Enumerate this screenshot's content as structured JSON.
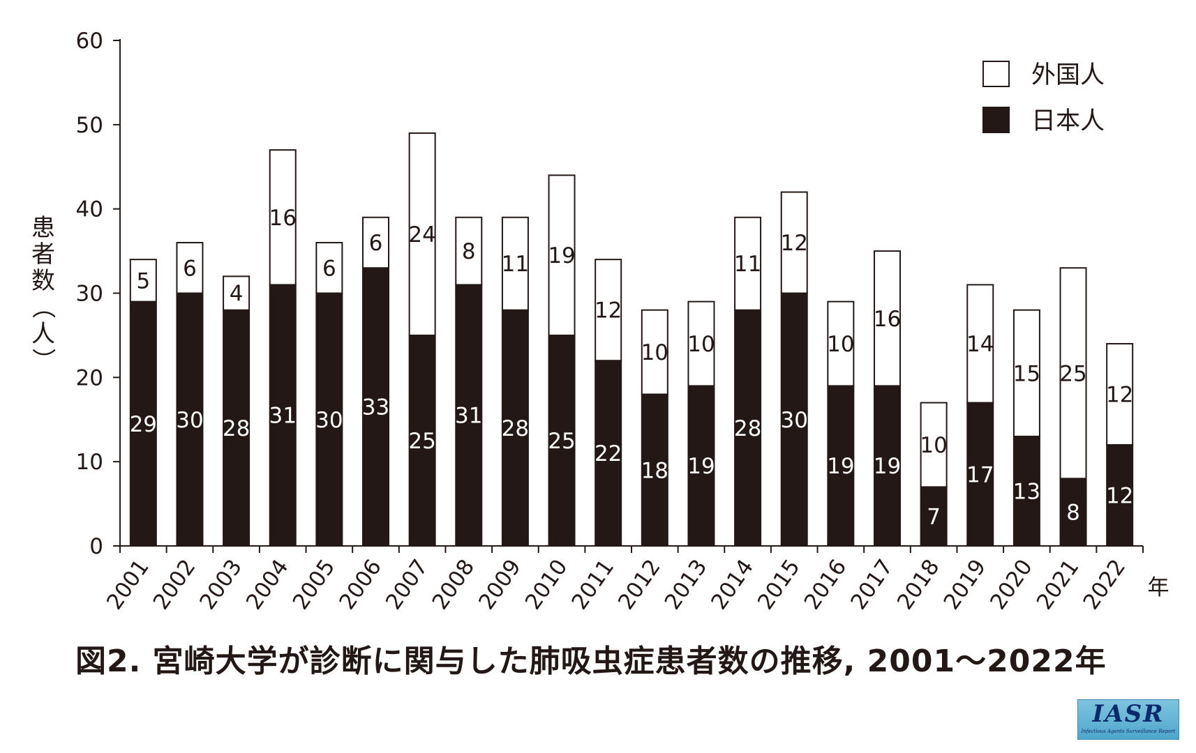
{
  "chart_data": {
    "type": "bar",
    "stacked": true,
    "title": "図2. 宮崎大学が診断に関与した肺吸虫症患者数の推移, 2001〜2022年",
    "xlabel": "年",
    "ylabel": "患者数（人）",
    "ylim": [
      0,
      60
    ],
    "yticks": [
      "0",
      "10",
      "20",
      "30",
      "40",
      "50",
      "60"
    ],
    "grid": false,
    "legend_position": "top-right",
    "categories": [
      "2001",
      "2002",
      "2003",
      "2004",
      "2005",
      "2006",
      "2007",
      "2008",
      "2009",
      "2010",
      "2011",
      "2012",
      "2013",
      "2014",
      "2015",
      "2016",
      "2017",
      "2018",
      "2019",
      "2020",
      "2021",
      "2022"
    ],
    "series": [
      {
        "name": "日本人",
        "color": "#231815",
        "label_color": "#ffffff",
        "values": [
          29,
          30,
          28,
          31,
          30,
          33,
          25,
          31,
          28,
          25,
          22,
          18,
          19,
          28,
          30,
          19,
          19,
          7,
          17,
          13,
          8,
          12
        ]
      },
      {
        "name": "外国人",
        "color": "#ffffff",
        "label_color": "#231815",
        "values": [
          5,
          6,
          4,
          16,
          6,
          6,
          24,
          8,
          11,
          19,
          12,
          10,
          10,
          11,
          12,
          10,
          16,
          10,
          14,
          15,
          25,
          12
        ]
      }
    ]
  },
  "logo": {
    "main": "IASR",
    "sub": "Infectious Agents Surveillance Report"
  }
}
